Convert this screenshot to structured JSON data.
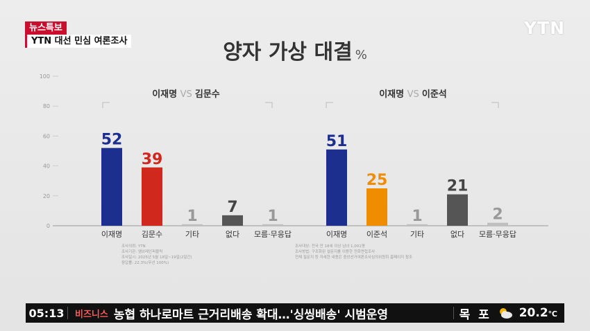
{
  "header": {
    "breaking_tag": "뉴스특보",
    "program_title": "YTN 대선 민심 여론조사",
    "logo": "YTN",
    "title": "양자 가상 대결",
    "title_unit": "%"
  },
  "ticker": {
    "time": "05:13",
    "category": "비즈니스",
    "headline": "농협 하나로마트 근거리배송 확대…'싱씽배송' 시범운영",
    "city": "목 포",
    "weather_icon": "partly-cloudy-icon",
    "temperature": "20.2",
    "temp_unit": "℃"
  },
  "chart_data": [
    {
      "type": "bar",
      "title_a": "이재명",
      "vs": "VS",
      "title_b": "김문수",
      "categories": [
        "이재명",
        "김문수",
        "기타",
        "없다",
        "모름·무응답"
      ],
      "values": [
        52,
        39,
        1,
        7,
        1
      ],
      "colors": [
        "#1c2f8f",
        "#d0281c",
        "#bfbfbf",
        "#555555",
        "#bfbfbf"
      ],
      "label_colors": [
        "#1c2f8f",
        "#d0281c",
        "#999999",
        "#444444",
        "#999999"
      ],
      "ylim": [
        0,
        100
      ],
      "yticks": [
        0,
        20,
        40,
        60,
        80,
        100
      ],
      "notes": [
        "조사의뢰: YTN",
        "조사기관: 엠브레인퍼블릭",
        "조사일시: 2025년 5월 18일~19일(2일간)",
        "응답률: 22.3%(무선 100%)"
      ]
    },
    {
      "type": "bar",
      "title_a": "이재명",
      "vs": "VS",
      "title_b": "이준석",
      "categories": [
        "이재명",
        "이준석",
        "기타",
        "없다",
        "모름·무응답"
      ],
      "values": [
        51,
        25,
        1,
        21,
        2
      ],
      "colors": [
        "#1c2f8f",
        "#f08c00",
        "#bfbfbf",
        "#555555",
        "#bfbfbf"
      ],
      "label_colors": [
        "#1c2f8f",
        "#f08c00",
        "#999999",
        "#444444",
        "#999999"
      ],
      "ylim": [
        0,
        100
      ],
      "yticks": [
        0,
        20,
        40,
        60,
        80,
        100
      ],
      "notes": [
        "조사대상: 전국 만 18세 이상 남녀 1,001명",
        "조사방법: 구조화된 설문지를 이용한 전화면접조사",
        "전체 질문지 등 자세한 내용은 중앙선거여론조사심의위원회 홈페이지 참조"
      ]
    }
  ]
}
